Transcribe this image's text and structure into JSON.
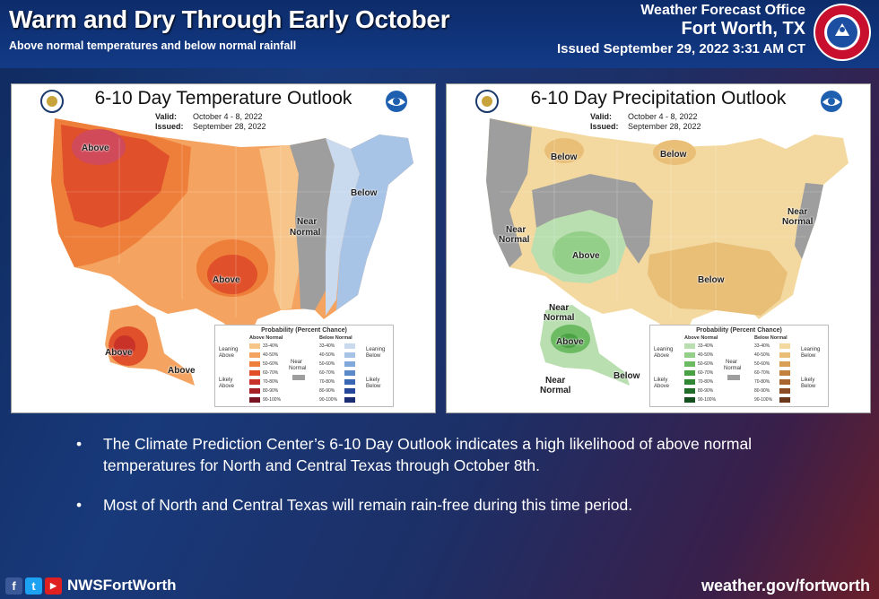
{
  "header": {
    "title": "Warm and Dry Through Early October",
    "subtitle": "Above normal temperatures and below normal rainfall",
    "office_name": "Weather Forecast Office",
    "office_city": "Fort Worth, TX",
    "issued": "Issued September 29, 2022 3:31 AM CT",
    "logo_text": "NATIONAL WEATHER SERVICE"
  },
  "temp_panel": {
    "title": "6-10 Day Temperature Outlook",
    "valid_label": "Valid:",
    "valid_value": "October 4 - 8, 2022",
    "issued_label": "Issued:",
    "issued_value": "September 28, 2022",
    "labels": {
      "above_nw": "Above",
      "above_south": "Above",
      "below_ne": "Below",
      "near": "Near",
      "normal": "Normal",
      "above_ak": "Above",
      "above_ak2": "Above"
    },
    "legend": {
      "title": "Probability (Percent Chance)",
      "left_head": "Above Normal",
      "right_head": "Below Normal",
      "near": "Near",
      "normal": "Normal",
      "leaning_left": "Leaning Above",
      "likely_left": "Likely Above",
      "leaning_right": "Leaning Below",
      "likely_right": "Likely Below",
      "ranges": [
        "33-40%",
        "40-50%",
        "50-60%",
        "60-70%",
        "70-80%",
        "80-90%",
        "90-100%"
      ],
      "left_colors": [
        "#f7c58a",
        "#f4a460",
        "#ee7f3a",
        "#e0502a",
        "#c83228",
        "#a52025",
        "#7a1420"
      ],
      "right_colors": [
        "#c9d9ee",
        "#a7c3e6",
        "#80a8da",
        "#5b89c9",
        "#3a67b4",
        "#26469a",
        "#1a2c72"
      ]
    }
  },
  "precip_panel": {
    "title": "6-10 Day Precipitation Outlook",
    "valid_label": "Valid:",
    "valid_value": "October 4 - 8, 2022",
    "issued_label": "Issued:",
    "issued_value": "September 28, 2022",
    "labels": {
      "below_nw": "Below",
      "below_n": "Below",
      "near_w": "Near",
      "normal_w": "Normal",
      "above_sw": "Above",
      "near_e": "Near",
      "normal_e": "Normal",
      "below_se": "Below",
      "near_ak": "Near",
      "normal_ak": "Normal",
      "above_ak": "Above",
      "near_ak2": "Near",
      "normal_ak2": "Normal",
      "below_ak": "Below"
    },
    "legend": {
      "title": "Probability (Percent Chance)",
      "left_head": "Above Normal",
      "right_head": "Below Normal",
      "near": "Near",
      "normal": "Normal",
      "leaning_left": "Leaning Above",
      "likely_left": "Likely Above",
      "leaning_right": "Leaning Below",
      "likely_right": "Likely Below",
      "ranges": [
        "33-40%",
        "40-50%",
        "50-60%",
        "60-70%",
        "70-80%",
        "80-90%",
        "90-100%"
      ],
      "left_colors": [
        "#b9dfb0",
        "#93cf88",
        "#6cbb62",
        "#4aa144",
        "#2f8733",
        "#1f6b27",
        "#14501d"
      ],
      "right_colors": [
        "#f3d9a0",
        "#e9bf78",
        "#d9a055",
        "#c4813d",
        "#a9652f",
        "#8b4c25",
        "#6b371b"
      ]
    }
  },
  "bullets": [
    "The Climate Prediction Center’s 6-10 Day Outlook indicates a high likelihood of above normal temperatures for North and Central Texas through October 8th.",
    "Most of North and Central Texas will remain rain-free during this time period."
  ],
  "footer": {
    "fb": "f",
    "tw": "t",
    "yt": "▶",
    "handle": "NWSFortWorth",
    "website": "weather.gov/fortworth"
  }
}
